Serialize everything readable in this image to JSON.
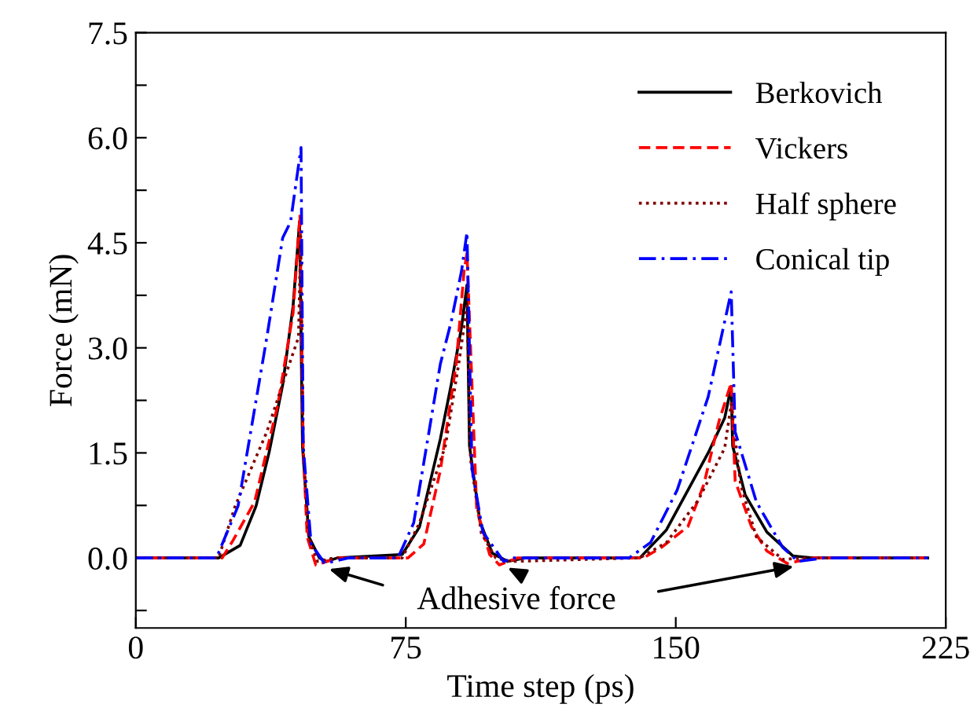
{
  "chart_data": {
    "type": "line",
    "xlabel": "Time step (ps)",
    "ylabel": "Force (mN)",
    "xlim": [
      0,
      225
    ],
    "xticks": [
      0,
      75,
      150,
      225
    ],
    "ylim": [
      -1.0,
      7.5
    ],
    "yticks": [
      {
        "value": -0.75,
        "label": null
      },
      {
        "value": 0.0,
        "label": "0.0"
      },
      {
        "value": 0.75,
        "label": null
      },
      {
        "value": 1.5,
        "label": "1.5"
      },
      {
        "value": 2.25,
        "label": null
      },
      {
        "value": 3.0,
        "label": "3.0"
      },
      {
        "value": 3.75,
        "label": null
      },
      {
        "value": 4.5,
        "label": "4.5"
      },
      {
        "value": 5.25,
        "label": null
      },
      {
        "value": 6.0,
        "label": "6.0"
      },
      {
        "value": 6.75,
        "label": null
      },
      {
        "value": 7.5,
        "label": "7.5"
      }
    ],
    "grid": false,
    "legend": "top right",
    "marker": "none",
    "annotations": [
      "Adhesive force"
    ],
    "series": [
      {
        "name": "Berkovich",
        "color": "#000000",
        "line_style": "solid",
        "x": [
          0,
          23,
          29,
          33.4,
          37,
          40.8,
          43.7,
          45.5,
          46.3,
          48.1,
          51,
          53,
          56,
          74,
          78.8,
          84.6,
          87.6,
          90.5,
          92,
          92.7,
          95.6,
          99,
          103.3,
          108,
          140,
          147.4,
          159,
          163.6,
          165.4,
          165.8,
          169.3,
          175.3,
          182.5,
          188,
          220
        ],
        "values": [
          0,
          0,
          0.18,
          0.74,
          1.5,
          2.47,
          3.6,
          4.8,
          1.6,
          0.3,
          0,
          -0.05,
          0,
          0.05,
          0.44,
          1.7,
          2.47,
          3.3,
          3.9,
          1.6,
          0.52,
          0.07,
          -0.05,
          0,
          0,
          0.4,
          1.5,
          2.0,
          2.45,
          1.6,
          0.9,
          0.37,
          0.03,
          0,
          0
        ]
      },
      {
        "name": "Vickers",
        "color": "#ff0000",
        "line_style": "dashed",
        "x": [
          0,
          24,
          27,
          33,
          39.5,
          43.7,
          45.6,
          46.5,
          47.6,
          50,
          56,
          75.6,
          80,
          84.6,
          89,
          91.2,
          92,
          94.7,
          98.3,
          101,
          106,
          141,
          146,
          153.4,
          157.8,
          162,
          165.4,
          166.5,
          171,
          175.3,
          181,
          188,
          220
        ],
        "values": [
          0,
          0,
          0.25,
          0.8,
          2.2,
          3.5,
          4.9,
          1.6,
          0.3,
          -0.1,
          0,
          0,
          0.2,
          1.25,
          2.77,
          4.1,
          4.35,
          0.7,
          0.05,
          -0.1,
          0,
          0,
          0.15,
          0.45,
          1.05,
          1.95,
          2.5,
          1.1,
          0.45,
          0.1,
          -0.08,
          0,
          0
        ]
      },
      {
        "name": "Half sphere",
        "color": "#800000",
        "line_style": "dotted",
        "x": [
          0,
          23,
          27.6,
          36.4,
          42.2,
          45.2,
          45.8,
          46.5,
          48,
          50.5,
          55,
          74,
          78.8,
          86,
          89.7,
          92,
          93,
          96,
          100,
          104,
          140,
          147.4,
          156.2,
          163.6,
          165.4,
          168,
          172.4,
          179.7,
          186,
          220
        ],
        "values": [
          0,
          0,
          0.74,
          1.8,
          2.7,
          3.15,
          4.6,
          1.5,
          0.3,
          -0.05,
          0,
          0,
          0.5,
          1.6,
          2.77,
          3.6,
          1.4,
          0.35,
          0,
          -0.05,
          0,
          0.22,
          0.82,
          1.57,
          2.2,
          1.05,
          0.3,
          -0.02,
          0,
          0
        ]
      },
      {
        "name": "Conical tip",
        "color": "#0000ff",
        "line_style": "dashdot",
        "x": [
          0,
          22.4,
          28.4,
          36.4,
          40.8,
          43,
          45.9,
          46.5,
          48.7,
          52.5,
          59,
          72.8,
          77.2,
          84.6,
          87.6,
          90.5,
          92,
          93.4,
          96.4,
          102.2,
          105,
          137,
          143,
          150.4,
          159,
          165.4,
          166.5,
          172.4,
          179.7,
          184,
          191,
          220
        ],
        "values": [
          0,
          0,
          0.74,
          3.15,
          4.57,
          4.8,
          5.86,
          1.6,
          0.2,
          -0.08,
          0,
          0,
          0.5,
          2.77,
          3.37,
          4.1,
          4.65,
          1.27,
          0.37,
          -0.05,
          0,
          0,
          0.22,
          0.97,
          2.3,
          3.8,
          1.8,
          0.8,
          0.15,
          -0.05,
          0,
          0
        ]
      }
    ]
  }
}
